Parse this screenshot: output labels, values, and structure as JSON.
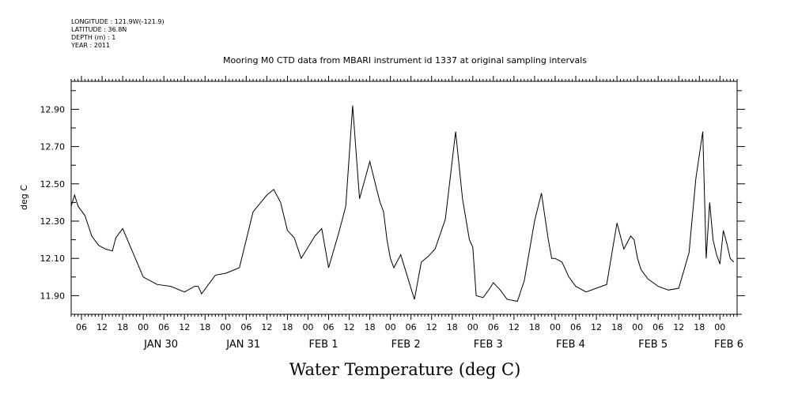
{
  "meta": {
    "longitude": "LONGITUDE : 121.9W(-121.9)",
    "latitude": "LATITUDE : 36.8N",
    "depth": "DEPTH (m) : 1",
    "year": "YEAR : 2011"
  },
  "chart_data": {
    "type": "line",
    "title": "Mooring M0 CTD data from MBARI instrument id 1337 at original sampling intervals",
    "xlabel": "Water Temperature (deg C)",
    "ylabel": "deg C",
    "ylim": [
      11.8,
      13.05
    ],
    "yticks": [
      "11.90",
      "12.10",
      "12.30",
      "12.50",
      "12.70",
      "12.90"
    ],
    "xlim": [
      "2011-01-29T03:00",
      "2011-02-06T05:00"
    ],
    "hour_labels": [
      "06",
      "12",
      "18",
      "00",
      "06",
      "12",
      "18",
      "00",
      "06",
      "12",
      "18",
      "00",
      "06",
      "12",
      "18",
      "00",
      "06",
      "12",
      "18",
      "00",
      "06",
      "12",
      "18",
      "00",
      "06",
      "12",
      "18",
      "00",
      "06",
      "12",
      "18",
      "00"
    ],
    "day_labels": [
      "JAN 30",
      "JAN 31",
      "FEB  1",
      "FEB  2",
      "FEB  3",
      "FEB  4",
      "FEB  5",
      "FEB  6"
    ],
    "grid": false,
    "series": [
      {
        "color": "#000000",
        "x": [
          "2011-01-29T03:00",
          "2011-01-29T04:00",
          "2011-01-29T05:00",
          "2011-01-29T07:00",
          "2011-01-29T09:00",
          "2011-01-29T11:00",
          "2011-01-29T13:00",
          "2011-01-29T15:00",
          "2011-01-29T16:00",
          "2011-01-29T18:00",
          "2011-01-29T21:00",
          "2011-01-30T00:00",
          "2011-01-30T04:00",
          "2011-01-30T08:00",
          "2011-01-30T12:00",
          "2011-01-30T15:00",
          "2011-01-30T16:00",
          "2011-01-30T17:00",
          "2011-01-30T21:00",
          "2011-01-31T00:00",
          "2011-01-31T04:00",
          "2011-01-31T08:00",
          "2011-01-31T12:00",
          "2011-01-31T14:00",
          "2011-01-31T16:00",
          "2011-01-31T18:00",
          "2011-01-31T20:00",
          "2011-01-31T22:00",
          "2011-01-31T23:00",
          "2011-02-01T00:00",
          "2011-02-01T02:00",
          "2011-02-01T04:00",
          "2011-02-01T06:00",
          "2011-02-01T09:00",
          "2011-02-01T11:00",
          "2011-02-01T13:00",
          "2011-02-01T15:00",
          "2011-02-01T18:00",
          "2011-02-01T20:00",
          "2011-02-01T21:00",
          "2011-02-01T22:00",
          "2011-02-01T23:00",
          "2011-02-02T00:00",
          "2011-02-02T01:00",
          "2011-02-02T03:00",
          "2011-02-02T05:00",
          "2011-02-02T07:00",
          "2011-02-02T09:00",
          "2011-02-02T11:00",
          "2011-02-02T13:00",
          "2011-02-02T16:00",
          "2011-02-02T19:00",
          "2011-02-02T21:00",
          "2011-02-02T23:00",
          "2011-02-03T00:00",
          "2011-02-03T01:00",
          "2011-02-03T03:00",
          "2011-02-03T05:00",
          "2011-02-03T06:00",
          "2011-02-03T08:00",
          "2011-02-03T10:00",
          "2011-02-03T13:00",
          "2011-02-03T15:00",
          "2011-02-03T18:00",
          "2011-02-03T20:00",
          "2011-02-03T22:00",
          "2011-02-03T23:00",
          "2011-02-04T00:00",
          "2011-02-04T02:00",
          "2011-02-04T04:00",
          "2011-02-04T06:00",
          "2011-02-04T09:00",
          "2011-02-04T12:00",
          "2011-02-04T15:00",
          "2011-02-04T18:00",
          "2011-02-04T20:00",
          "2011-02-04T22:00",
          "2011-02-04T23:00",
          "2011-02-05T00:00",
          "2011-02-05T01:00",
          "2011-02-05T03:00",
          "2011-02-05T06:00",
          "2011-02-05T09:00",
          "2011-02-05T12:00",
          "2011-02-05T15:00",
          "2011-02-05T17:00",
          "2011-02-05T19:00",
          "2011-02-05T20:00",
          "2011-02-05T21:00",
          "2011-02-05T22:00",
          "2011-02-05T23:00",
          "2011-02-06T00:00",
          "2011-02-06T01:00",
          "2011-02-06T02:00",
          "2011-02-06T03:00",
          "2011-02-06T04:00"
        ],
        "y": [
          12.38,
          12.44,
          12.38,
          12.33,
          12.22,
          12.17,
          12.15,
          12.14,
          12.21,
          12.26,
          12.13,
          12.0,
          11.96,
          11.95,
          11.92,
          11.95,
          11.95,
          11.91,
          12.01,
          12.02,
          12.05,
          12.35,
          12.44,
          12.47,
          12.4,
          12.25,
          12.21,
          12.1,
          12.13,
          12.16,
          12.22,
          12.26,
          12.05,
          12.24,
          12.38,
          12.92,
          12.42,
          12.62,
          12.47,
          12.4,
          12.35,
          12.2,
          12.1,
          12.05,
          12.12,
          12.0,
          11.88,
          12.08,
          12.11,
          12.15,
          12.31,
          12.78,
          12.42,
          12.2,
          12.16,
          11.9,
          11.89,
          11.94,
          11.97,
          11.93,
          11.88,
          11.87,
          11.98,
          12.3,
          12.45,
          12.2,
          12.1,
          12.1,
          12.08,
          12.0,
          11.95,
          11.92,
          11.94,
          11.96,
          12.29,
          12.15,
          12.22,
          12.2,
          12.1,
          12.04,
          11.99,
          11.95,
          11.93,
          11.94,
          12.13,
          12.53,
          12.78,
          12.1,
          12.4,
          12.2,
          12.12,
          12.07,
          12.25,
          12.18,
          12.1,
          12.08
        ]
      }
    ]
  }
}
